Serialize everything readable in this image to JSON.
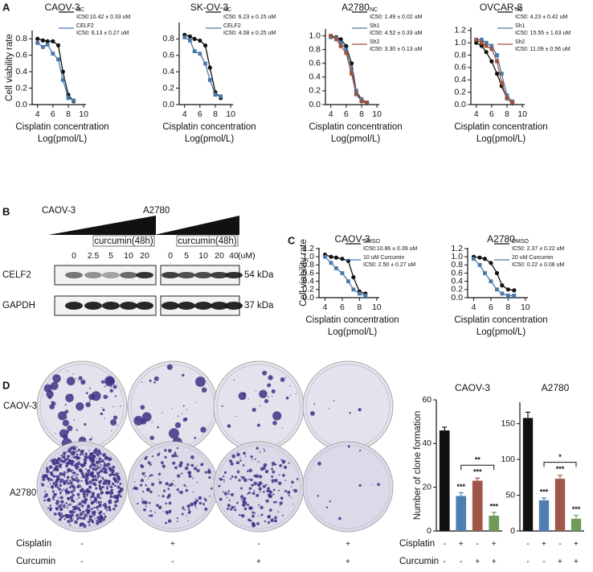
{
  "panel_labels": [
    "A",
    "B",
    "C",
    "D"
  ],
  "chart_data": [
    {
      "type": "line",
      "title": "CAOV-3",
      "ylabel": "Cell viability rate",
      "xlabel": [
        "Cisplatin concentration",
        "Log(pmol/L)"
      ],
      "x": [
        4,
        4.7,
        5.3,
        6,
        6.7,
        7.3,
        8,
        8.7
      ],
      "xlim": [
        3.3,
        10.3
      ],
      "xticks": [
        4,
        6,
        8,
        10
      ],
      "ylim": [
        0,
        0.9
      ],
      "yticks": [
        {
          "value": 0,
          "label": "0.0"
        },
        0.2,
        0.4,
        0.6,
        0.8
      ],
      "series": [
        {
          "name": "NC",
          "annotation": "IC50:10.42 ± 0.33 uM",
          "color": "#111111",
          "marker": "circle",
          "values": [
            0.8,
            0.78,
            0.77,
            0.77,
            0.72,
            0.4,
            0.12,
            0.04
          ]
        },
        {
          "name": "CELF2",
          "annotation": "IC50: 6.13 ± 0.27 uM",
          "color": "#4a78a8",
          "marker": "square",
          "values": [
            0.75,
            0.7,
            0.73,
            0.62,
            0.55,
            0.3,
            0.08,
            0.05
          ]
        }
      ]
    },
    {
      "type": "line",
      "title": "SK-OV-3",
      "xlabel": [
        "Cisplatin concentration",
        "Log(pmol/L)"
      ],
      "x": [
        4,
        4.7,
        5.3,
        6,
        6.7,
        7.3,
        8,
        8.7
      ],
      "xlim": [
        3.3,
        10.3
      ],
      "xticks": [
        4,
        6,
        8,
        10
      ],
      "ylim": [
        0,
        1.0
      ],
      "yticks": [
        {
          "value": 0,
          "label": "0.0"
        },
        0.2,
        0.4,
        0.6,
        0.8
      ],
      "series": [
        {
          "name": "NC",
          "annotation": "IC50: 6.23 ± 0.15 uM",
          "color": "#111111",
          "marker": "circle",
          "values": [
            0.85,
            0.83,
            0.8,
            0.78,
            0.72,
            0.45,
            0.15,
            0.08
          ]
        },
        {
          "name": "CELF2",
          "annotation": "IC50: 4.08 ± 0.25 uM",
          "color": "#4a78a8",
          "marker": "square",
          "values": [
            0.82,
            0.78,
            0.65,
            0.62,
            0.5,
            0.3,
            0.12,
            0.1
          ]
        }
      ]
    },
    {
      "type": "line",
      "title": "A2780",
      "xlabel": [
        "Cisplatin concentration",
        "Log(pmol/L)"
      ],
      "x": [
        4,
        4.7,
        5.3,
        6,
        6.7,
        7.3,
        8,
        8.7
      ],
      "xlim": [
        3.3,
        10.3
      ],
      "xticks": [
        4,
        6,
        8,
        10
      ],
      "ylim": [
        0,
        1.1
      ],
      "yticks": [
        {
          "value": 0,
          "label": "0.0"
        },
        0.2,
        0.4,
        0.6,
        0.8,
        {
          "value": 1,
          "label": "1.0"
        }
      ],
      "series": [
        {
          "name": "NC",
          "annotation": "IC50: 1.49 ± 0.02 uM",
          "color": "#111111",
          "marker": "circle",
          "values": [
            1.0,
            0.98,
            0.95,
            0.85,
            0.6,
            0.2,
            0.05,
            0.02
          ]
        },
        {
          "name": "Sh1",
          "annotation": "IC50: 4.52 ± 0.33 uM",
          "color": "#4a78a8",
          "marker": "square",
          "values": [
            0.98,
            0.97,
            0.9,
            0.8,
            0.5,
            0.2,
            0.08,
            0.03
          ]
        },
        {
          "name": "Sh2",
          "annotation": "IC50: 3.30 ± 0.13 uM",
          "color": "#a0523c",
          "marker": "square",
          "values": [
            1.0,
            0.95,
            0.85,
            0.75,
            0.45,
            0.15,
            0.05,
            0.03
          ]
        }
      ]
    },
    {
      "type": "line",
      "title": "OVCAR-8",
      "xlabel": [
        "Cisplatin concentration",
        "Log(pmol/L)"
      ],
      "x": [
        4,
        4.7,
        5.3,
        6,
        6.7,
        7.3,
        8,
        8.7
      ],
      "xlim": [
        3.3,
        10.3
      ],
      "xticks": [
        4,
        6,
        8,
        10
      ],
      "ylim": [
        0,
        1.25
      ],
      "yticks": [
        {
          "value": 0,
          "label": "0.0"
        },
        0.2,
        0.4,
        0.6,
        0.8,
        {
          "value": 1,
          "label": "1.0"
        },
        1.2
      ],
      "series": [
        {
          "name": "NC",
          "annotation": "IC50: 4.23 ± 0.42 uM",
          "color": "#111111",
          "marker": "circle",
          "values": [
            1.0,
            0.95,
            0.85,
            0.7,
            0.5,
            0.3,
            0.1,
            0.02
          ]
        },
        {
          "name": "Sh1",
          "annotation": "IC50: 15.55 ± 1.63 uM",
          "color": "#4a78a8",
          "marker": "square",
          "values": [
            1.05,
            1.05,
            1.0,
            0.95,
            0.8,
            0.5,
            0.15,
            0.05
          ]
        },
        {
          "name": "Sh2",
          "annotation": "IC50: 11.09 ± 0.56 uM",
          "color": "#a0523c",
          "marker": "square",
          "values": [
            1.05,
            1.0,
            0.95,
            0.9,
            0.7,
            0.35,
            0.1,
            0.03
          ]
        }
      ]
    },
    {
      "type": "line",
      "title": "CAOV-3",
      "ylabel": "Cell viability rate",
      "xlabel": [
        "Cisplatin concentration",
        "Log(pmol/L)"
      ],
      "x": [
        4,
        4.7,
        5.3,
        6,
        6.7,
        7.3,
        8,
        8.7
      ],
      "xlim": [
        3.3,
        10.3
      ],
      "xticks": [
        4,
        6,
        8,
        10
      ],
      "ylim": [
        0,
        1.22
      ],
      "yticks": [
        {
          "value": 0,
          "label": "0.0"
        },
        0.2,
        0.4,
        0.6,
        0.8,
        {
          "value": 1,
          "label": "1.0"
        },
        1.2
      ],
      "series": [
        {
          "name": "DMSO",
          "annotation": "IC50:10.86 ± 0.39 uM",
          "color": "#111111",
          "marker": "circle",
          "values": [
            1.05,
            1.0,
            0.98,
            0.95,
            0.9,
            0.5,
            0.15,
            0.1
          ]
        },
        {
          "name": "10 uM Curcumin",
          "annotation": "IC50: 2.50 ± 0.27 uM",
          "color": "#4a78a8",
          "marker": "square",
          "values": [
            1.0,
            0.85,
            0.72,
            0.6,
            0.4,
            0.2,
            0.1,
            0.05
          ]
        }
      ]
    },
    {
      "type": "line",
      "title": "A2780",
      "xlabel": [
        "Cisplatin concentration",
        "Log(pmol/L)"
      ],
      "x": [
        4,
        4.7,
        5.3,
        6,
        6.7,
        7.3,
        8,
        8.7
      ],
      "xlim": [
        3.3,
        10.3
      ],
      "xticks": [
        4,
        6,
        8,
        10
      ],
      "ylim": [
        0,
        1.22
      ],
      "yticks": [
        {
          "value": 0,
          "label": "0.0"
        },
        0.2,
        0.4,
        0.6,
        0.8,
        {
          "value": 1,
          "label": "1.0"
        },
        1.2
      ],
      "series": [
        {
          "name": "DMSO",
          "annotation": "IC50: 2.37 ± 0.22 uM",
          "color": "#111111",
          "marker": "circle",
          "values": [
            1.0,
            0.98,
            0.95,
            0.85,
            0.6,
            0.3,
            0.2,
            0.18
          ]
        },
        {
          "name": "20 uM Curcumin",
          "annotation": "IC50: 0.22 ± 0.06 uM",
          "color": "#4a78a8",
          "marker": "square",
          "values": [
            0.95,
            0.8,
            0.6,
            0.4,
            0.2,
            0.1,
            0.05,
            0.05
          ]
        }
      ]
    },
    {
      "type": "bar",
      "title": "CAOV-3",
      "ylabel": "Number of clone formation",
      "values": [
        46,
        16,
        23,
        7
      ],
      "errors": [
        1.5,
        1.5,
        1.2,
        1.5
      ],
      "colors": [
        "#111111",
        "#4f7fb0",
        "#a0574a",
        "#6f9a5a"
      ],
      "ylim": [
        0,
        60
      ],
      "yticks": [
        0,
        20,
        40,
        60
      ],
      "annotations": [
        {
          "index": 1,
          "text": "***"
        },
        {
          "index": 2,
          "text": "***"
        },
        {
          "index": 3,
          "text": "***"
        }
      ],
      "brackets": [
        {
          "from": 1,
          "to": 3,
          "text": "**"
        }
      ],
      "condition_rows": [
        {
          "label": "Cisplatin",
          "signs": [
            "-",
            "+",
            "-",
            "+"
          ]
        },
        {
          "label": "Curcumin",
          "signs": [
            "-",
            "-",
            "+",
            "+"
          ]
        }
      ]
    },
    {
      "type": "bar",
      "title": "A2780",
      "values": [
        158,
        43,
        73,
        17
      ],
      "errors": [
        8,
        3,
        5,
        5
      ],
      "colors": [
        "#111111",
        "#4f7fb0",
        "#a0574a",
        "#6f9a5a"
      ],
      "ylim": [
        0,
        180
      ],
      "yticks": [
        0,
        50,
        100,
        150
      ],
      "annotations": [
        {
          "index": 1,
          "text": "***"
        },
        {
          "index": 2,
          "text": "***"
        },
        {
          "index": 3,
          "text": "***"
        }
      ],
      "brackets": [
        {
          "from": 1,
          "to": 3,
          "text": "*"
        }
      ],
      "condition_rows": [
        {
          "signs": [
            "-",
            "+",
            "-",
            "+"
          ]
        },
        {
          "signs": [
            "-",
            "-",
            "+",
            "+"
          ]
        }
      ]
    }
  ],
  "blot": {
    "cell_lines": [
      {
        "name": "CAOV-3",
        "treatment": "curcumin(48h)",
        "doses": [
          "0",
          "2.5",
          "5",
          "10",
          "20"
        ]
      },
      {
        "name": "A2780",
        "treatment": "curcumin(48h)",
        "doses": [
          "0",
          "5",
          "10",
          "20",
          "40"
        ]
      }
    ],
    "unit": "(uM)",
    "proteins": [
      {
        "name": "CELF2",
        "size": "54 kDa"
      },
      {
        "name": "GAPDH",
        "size": "37 kDa"
      }
    ]
  },
  "plates": {
    "rows": [
      "CAOV-3",
      "A2780"
    ],
    "conditions": [
      {
        "label": "Cisplatin",
        "signs": [
          "-",
          "+",
          "-",
          "+"
        ]
      },
      {
        "label": "Curcumin",
        "signs": [
          "-",
          "-",
          "+",
          "+"
        ]
      }
    ]
  }
}
